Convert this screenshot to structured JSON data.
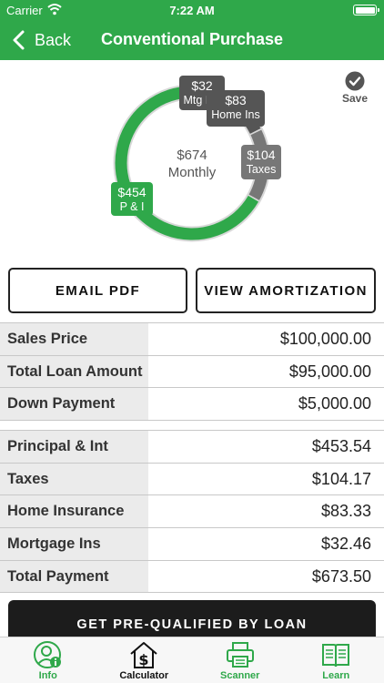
{
  "status_bar": {
    "carrier": "Carrier",
    "time": "7:22 AM"
  },
  "nav": {
    "back_label": "Back",
    "title": "Conventional Purchase"
  },
  "save_label": "Save",
  "chart_data": {
    "type": "donut",
    "center_value": "$674",
    "center_label": "Monthly",
    "segments": [
      {
        "label": "P & I",
        "display": "$454",
        "value": 453.54,
        "color": "#2fa84a"
      },
      {
        "label": "Taxes",
        "display": "$104",
        "value": 104.17,
        "color": "#777777"
      },
      {
        "label": "Home Ins",
        "display": "$83",
        "value": 83.33,
        "color": "#555555"
      },
      {
        "label": "Mtg Ins",
        "display": "$32",
        "value": 32.46,
        "color": "#555555"
      }
    ]
  },
  "buttons": {
    "email_pdf": "EMAIL PDF",
    "view_amortization": "VIEW AMORTIZATION"
  },
  "loan_table": [
    {
      "label": "Sales Price",
      "value": "$100,000.00"
    },
    {
      "label": "Total Loan Amount",
      "value": "$95,000.00"
    },
    {
      "label": "Down Payment",
      "value": "$5,000.00"
    }
  ],
  "payment_table": [
    {
      "label": "Principal & Int",
      "value": "$453.54"
    },
    {
      "label": "Taxes",
      "value": "$104.17"
    },
    {
      "label": "Home Insurance",
      "value": "$83.33"
    },
    {
      "label": "Mortgage Ins",
      "value": "$32.46"
    },
    {
      "label": "Total Payment",
      "value": "$673.50"
    }
  ],
  "cta_label": "GET PRE-QUALIFIED BY LOAN",
  "tabs": [
    {
      "label": "Info",
      "icon": "info-person-icon"
    },
    {
      "label": "Calculator",
      "icon": "house-dollar-icon"
    },
    {
      "label": "Scanner",
      "icon": "printer-icon"
    },
    {
      "label": "Learn",
      "icon": "book-icon"
    }
  ],
  "colors": {
    "brand_green": "#2fa84a",
    "dark_gray": "#555555",
    "mid_gray": "#777777",
    "cta_black": "#1c1c1c"
  }
}
